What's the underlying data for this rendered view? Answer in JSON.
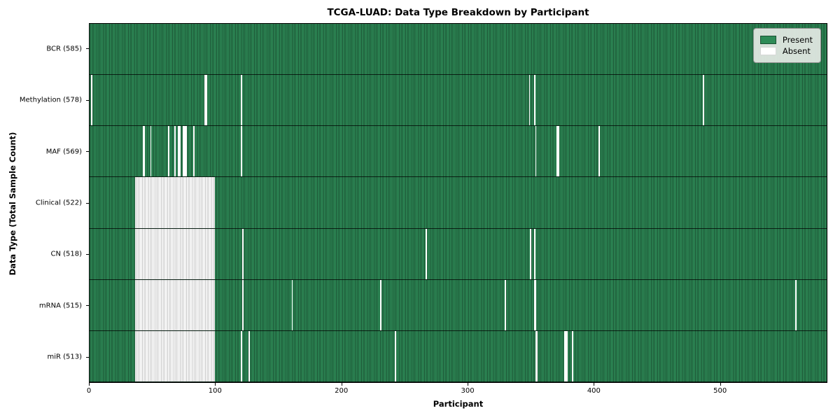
{
  "chart_data": {
    "type": "heatmap",
    "title": "TCGA-LUAD: Data Type Breakdown by Participant",
    "xlabel": "Participant",
    "ylabel": "Data Type (Total Sample Count)",
    "n_participants": 585,
    "x_ticks": [
      0,
      100,
      200,
      300,
      400,
      500
    ],
    "grid": false,
    "legend": {
      "position": "upper-right",
      "entries": [
        {
          "label": "Present",
          "color": "#2e8b57"
        },
        {
          "label": "Absent",
          "color": "#ffffff"
        }
      ]
    },
    "colors": {
      "present_fill": "#2e8b57",
      "present_edge": "#1b5133",
      "absent_fill": "#ffffff",
      "absent_edge": "#c6c6c6",
      "legend_background": "#e5eae5"
    },
    "rows": [
      {
        "label": "BCR (585)",
        "data_type": "BCR",
        "present_count": 585,
        "absent_ranges": []
      },
      {
        "label": "Methylation (578)",
        "data_type": "Methylation",
        "present_count": 578,
        "absent_ranges": [
          [
            1,
            1
          ],
          [
            91,
            92
          ],
          [
            120,
            120
          ],
          [
            348,
            348
          ],
          [
            352,
            352
          ],
          [
            486,
            486
          ]
        ]
      },
      {
        "label": "MAF (569)",
        "data_type": "MAF",
        "present_count": 569,
        "absent_ranges": [
          [
            42,
            43
          ],
          [
            48,
            48
          ],
          [
            62,
            62
          ],
          [
            67,
            67
          ],
          [
            70,
            71
          ],
          [
            74,
            76
          ],
          [
            82,
            82
          ],
          [
            120,
            120
          ],
          [
            353,
            353
          ],
          [
            370,
            371
          ],
          [
            403,
            403
          ]
        ]
      },
      {
        "label": "Clinical (522)",
        "data_type": "Clinical",
        "present_count": 522,
        "absent_ranges": [
          [
            36,
            98
          ]
        ]
      },
      {
        "label": "CN (518)",
        "data_type": "CN",
        "present_count": 518,
        "absent_ranges": [
          [
            36,
            98
          ],
          [
            121,
            121
          ],
          [
            266,
            266
          ],
          [
            349,
            349
          ],
          [
            352,
            352
          ]
        ]
      },
      {
        "label": "mRNA (515)",
        "data_type": "mRNA",
        "present_count": 515,
        "absent_ranges": [
          [
            36,
            98
          ],
          [
            121,
            121
          ],
          [
            160,
            160
          ],
          [
            230,
            230
          ],
          [
            329,
            329
          ],
          [
            352,
            353
          ],
          [
            559,
            559
          ]
        ]
      },
      {
        "label": "miR (513)",
        "data_type": "miR",
        "present_count": 513,
        "absent_ranges": [
          [
            36,
            98
          ],
          [
            120,
            120
          ],
          [
            126,
            126
          ],
          [
            242,
            242
          ],
          [
            353,
            354
          ],
          [
            376,
            378
          ],
          [
            382,
            382
          ]
        ]
      }
    ]
  }
}
